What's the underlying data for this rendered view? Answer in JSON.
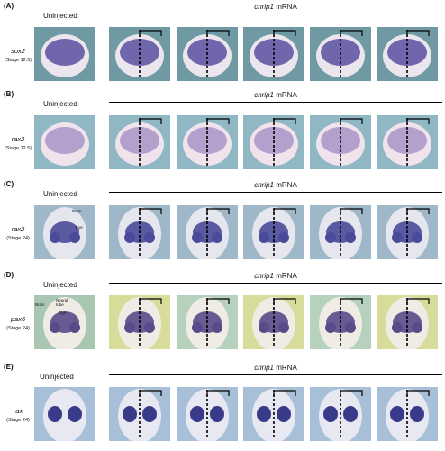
{
  "panels": [
    {
      "id": "A",
      "letter": "(A)",
      "uninjected": "Uninjected",
      "mrna_gene": "cnrip1",
      "mrna_rest": " mRNA",
      "gene": "sox2",
      "stage": "(Stage 12.5)",
      "bg": "#6f9aa3",
      "embryo": "#ebe6ee",
      "stain": "#5b4fa0"
    },
    {
      "id": "B",
      "letter": "(B)",
      "uninjected": "Uninjected",
      "mrna_gene": "cnrip1",
      "mrna_rest": " mRNA",
      "gene": "rax2",
      "stage": "(Stage 12.5)",
      "bg": "#8fb7c4",
      "embryo": "#f1e3ec",
      "stain": "#7f6ab5"
    },
    {
      "id": "C",
      "letter": "(C)",
      "uninjected": "Uninjected",
      "mrna_gene": "cnrip1",
      "mrna_rest": " mRNA",
      "gene": "rax2",
      "stage": "(Stage 24)",
      "bg": "#9fb8c9",
      "embryo": "#e6e6ee",
      "stain": "#4a4a9a",
      "labels": [
        "Brain",
        "Eye"
      ]
    },
    {
      "id": "D",
      "letter": "(D)",
      "uninjected": "Uninjected",
      "mrna_gene": "cnrip1",
      "mrna_rest": " mRNA",
      "gene": "pax6",
      "stage": "(Stage 24)",
      "bg": "#a9c7b0",
      "embryo": "#efece6",
      "stain": "#5a4a8a",
      "labels": [
        "Brain",
        "Neural tube",
        "Eye"
      ]
    },
    {
      "id": "E",
      "letter": "(E)",
      "uninjected": "Uninjected",
      "mrna_gene": "cnrip1",
      "mrna_rest": " mRNA",
      "gene": "rax",
      "stage": "(Stage 24)",
      "bg": "#a8bfd8",
      "embryo": "#e8e8f3",
      "stain": "#3a3a8a"
    }
  ]
}
